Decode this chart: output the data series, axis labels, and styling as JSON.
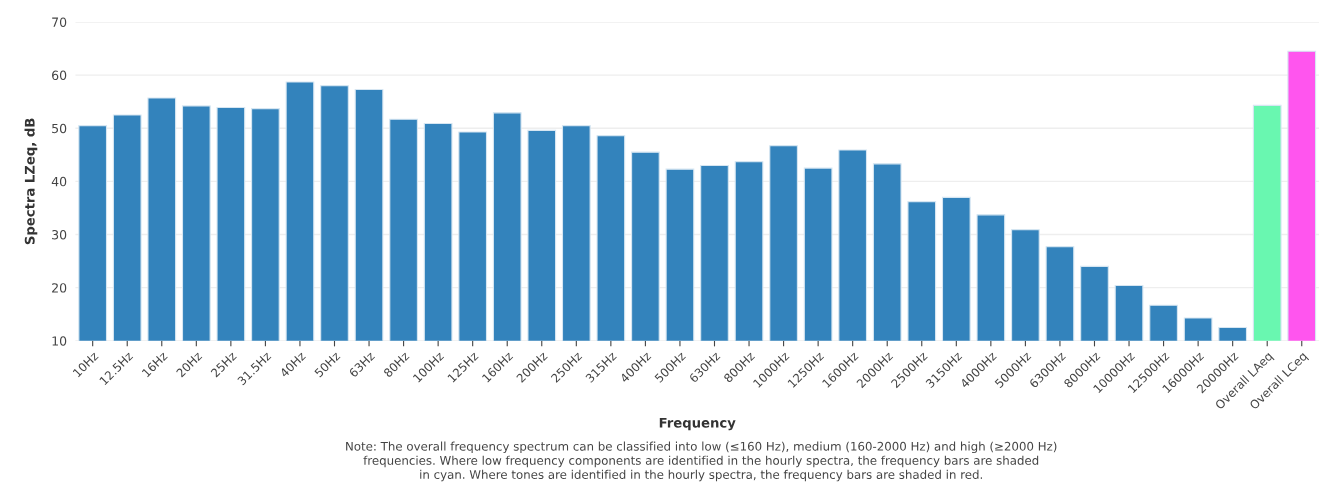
{
  "chart_data": {
    "type": "bar",
    "xlabel": "Frequency",
    "ylabel": "Spectra LZeq, dB",
    "categories": [
      "10Hz",
      "12.5Hz",
      "16Hz",
      "20Hz",
      "25Hz",
      "31.5Hz",
      "40Hz",
      "50Hz",
      "63Hz",
      "80Hz",
      "100Hz",
      "125Hz",
      "160Hz",
      "200Hz",
      "250Hz",
      "315Hz",
      "400Hz",
      "500Hz",
      "630Hz",
      "800Hz",
      "1000Hz",
      "1250Hz",
      "1600Hz",
      "2000Hz",
      "2500Hz",
      "3150Hz",
      "4000Hz",
      "5000Hz",
      "6300Hz",
      "8000Hz",
      "10000Hz",
      "12500Hz",
      "16000Hz",
      "20000Hz",
      "Overall LAeq",
      "Overall LCeq"
    ],
    "values": [
      50.5,
      52.5,
      55.7,
      54.2,
      53.9,
      53.7,
      58.7,
      58.0,
      57.3,
      51.7,
      50.9,
      49.3,
      52.9,
      49.6,
      50.5,
      48.6,
      45.5,
      42.3,
      43.0,
      43.7,
      46.7,
      42.5,
      45.9,
      43.3,
      36.2,
      37.0,
      33.7,
      30.9,
      27.7,
      24.0,
      20.4,
      16.7,
      14.3,
      12.5,
      54.3,
      64.5
    ],
    "colors": [
      "#3383bc",
      "#3383bc",
      "#3383bc",
      "#3383bc",
      "#3383bc",
      "#3383bc",
      "#3383bc",
      "#3383bc",
      "#3383bc",
      "#3383bc",
      "#3383bc",
      "#3383bc",
      "#3383bc",
      "#3383bc",
      "#3383bc",
      "#3383bc",
      "#3383bc",
      "#3383bc",
      "#3383bc",
      "#3383bc",
      "#3383bc",
      "#3383bc",
      "#3383bc",
      "#3383bc",
      "#3383bc",
      "#3383bc",
      "#3383bc",
      "#3383bc",
      "#3383bc",
      "#3383bc",
      "#3383bc",
      "#3383bc",
      "#3383bc",
      "#3383bc",
      "#69f7b0",
      "#ff55ee"
    ],
    "ylim": [
      10,
      70
    ],
    "yticks": [
      10,
      20,
      30,
      40,
      50,
      60,
      70
    ],
    "grid": "y",
    "legend": false,
    "annotations": [
      "Note: The overall frequency spectrum can be classified into low (≤160 Hz), medium (160-2000 Hz) and high (≥2000 Hz)\nfrequencies. Where low frequency components are identified in the hourly spectra, the frequency bars are shaded\nin cyan. Where tones are identified in the hourly spectra, the frequency bars are shaded in red."
    ]
  }
}
